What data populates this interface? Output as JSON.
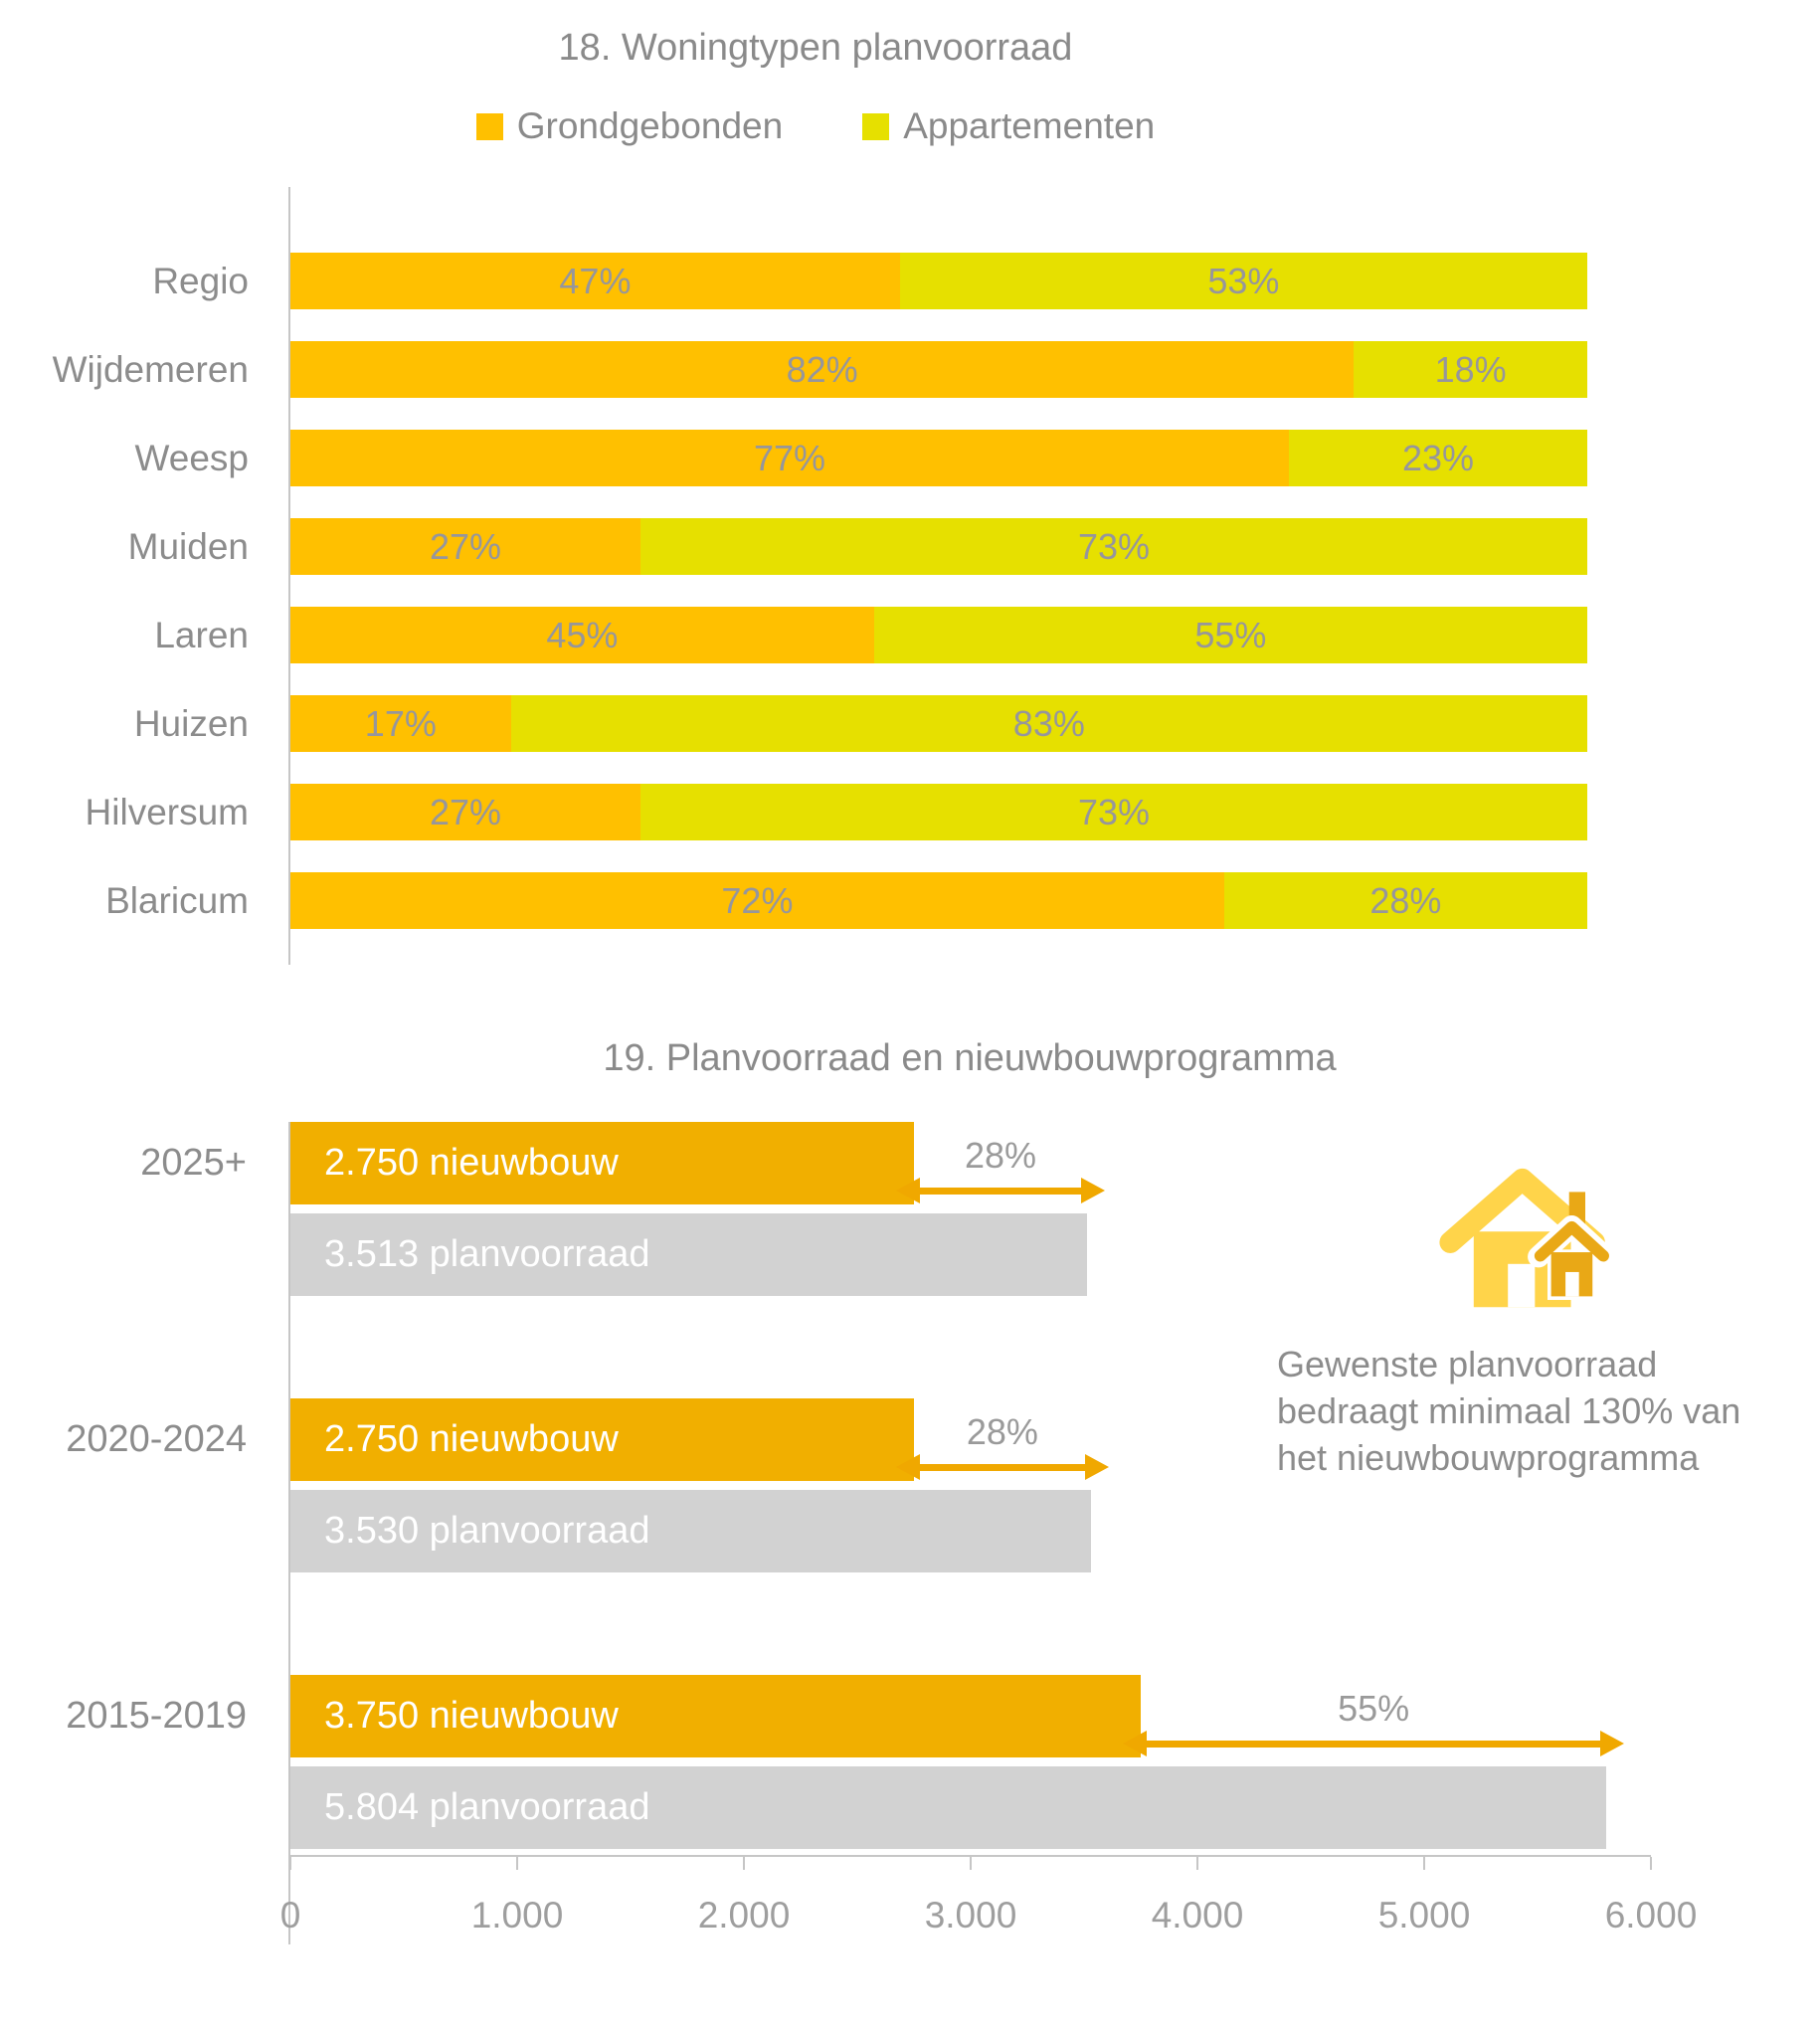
{
  "chart_data": [
    {
      "type": "bar",
      "subtype": "horizontal-stacked-100pct",
      "title": "18. Woningtypen planvoorraad",
      "categories": [
        "Regio",
        "Wijdemeren",
        "Weesp",
        "Muiden",
        "Laren",
        "Huizen",
        "Hilversum",
        "Blaricum"
      ],
      "series": [
        {
          "name": "Grondgebonden",
          "color": "#FFC000",
          "values": [
            47,
            82,
            77,
            27,
            45,
            17,
            27,
            72
          ]
        },
        {
          "name": "Appartementen",
          "color": "#E6E000",
          "values": [
            53,
            18,
            23,
            73,
            55,
            83,
            73,
            28
          ]
        }
      ],
      "value_format": "percent",
      "legend_position": "top",
      "grid": false
    },
    {
      "type": "bar",
      "subtype": "horizontal-grouped",
      "title": "19. Planvoorraad en nieuwbouwprogramma",
      "categories": [
        "2025+",
        "2020-2024",
        "2015-2019"
      ],
      "series": [
        {
          "name": "nieuwbouw",
          "color": "#F1AF00",
          "values": [
            2750,
            2750,
            3750
          ],
          "bar_labels": [
            "2.750 nieuwbouw",
            "2.750 nieuwbouw",
            "3.750 nieuwbouw"
          ]
        },
        {
          "name": "planvoorraad",
          "color": "#D2D2D2",
          "values": [
            3513,
            3530,
            5804
          ],
          "bar_labels": [
            "3.513 planvoorraad",
            "3.530 planvoorraad",
            "5.804 planvoorraad"
          ]
        }
      ],
      "gap_labels": [
        "28%",
        "28%",
        "55%"
      ],
      "arrow_color": "#F0A800",
      "xlim": [
        0,
        6000
      ],
      "x_ticks": [
        "0",
        "1.000",
        "2.000",
        "3.000",
        "4.000",
        "5.000",
        "6.000"
      ],
      "grid": false,
      "annotation_lines": [
        "Gewenste planvoorraad",
        "bedraagt minimaal 130% van",
        "het nieuwbouwprogramma"
      ]
    }
  ]
}
